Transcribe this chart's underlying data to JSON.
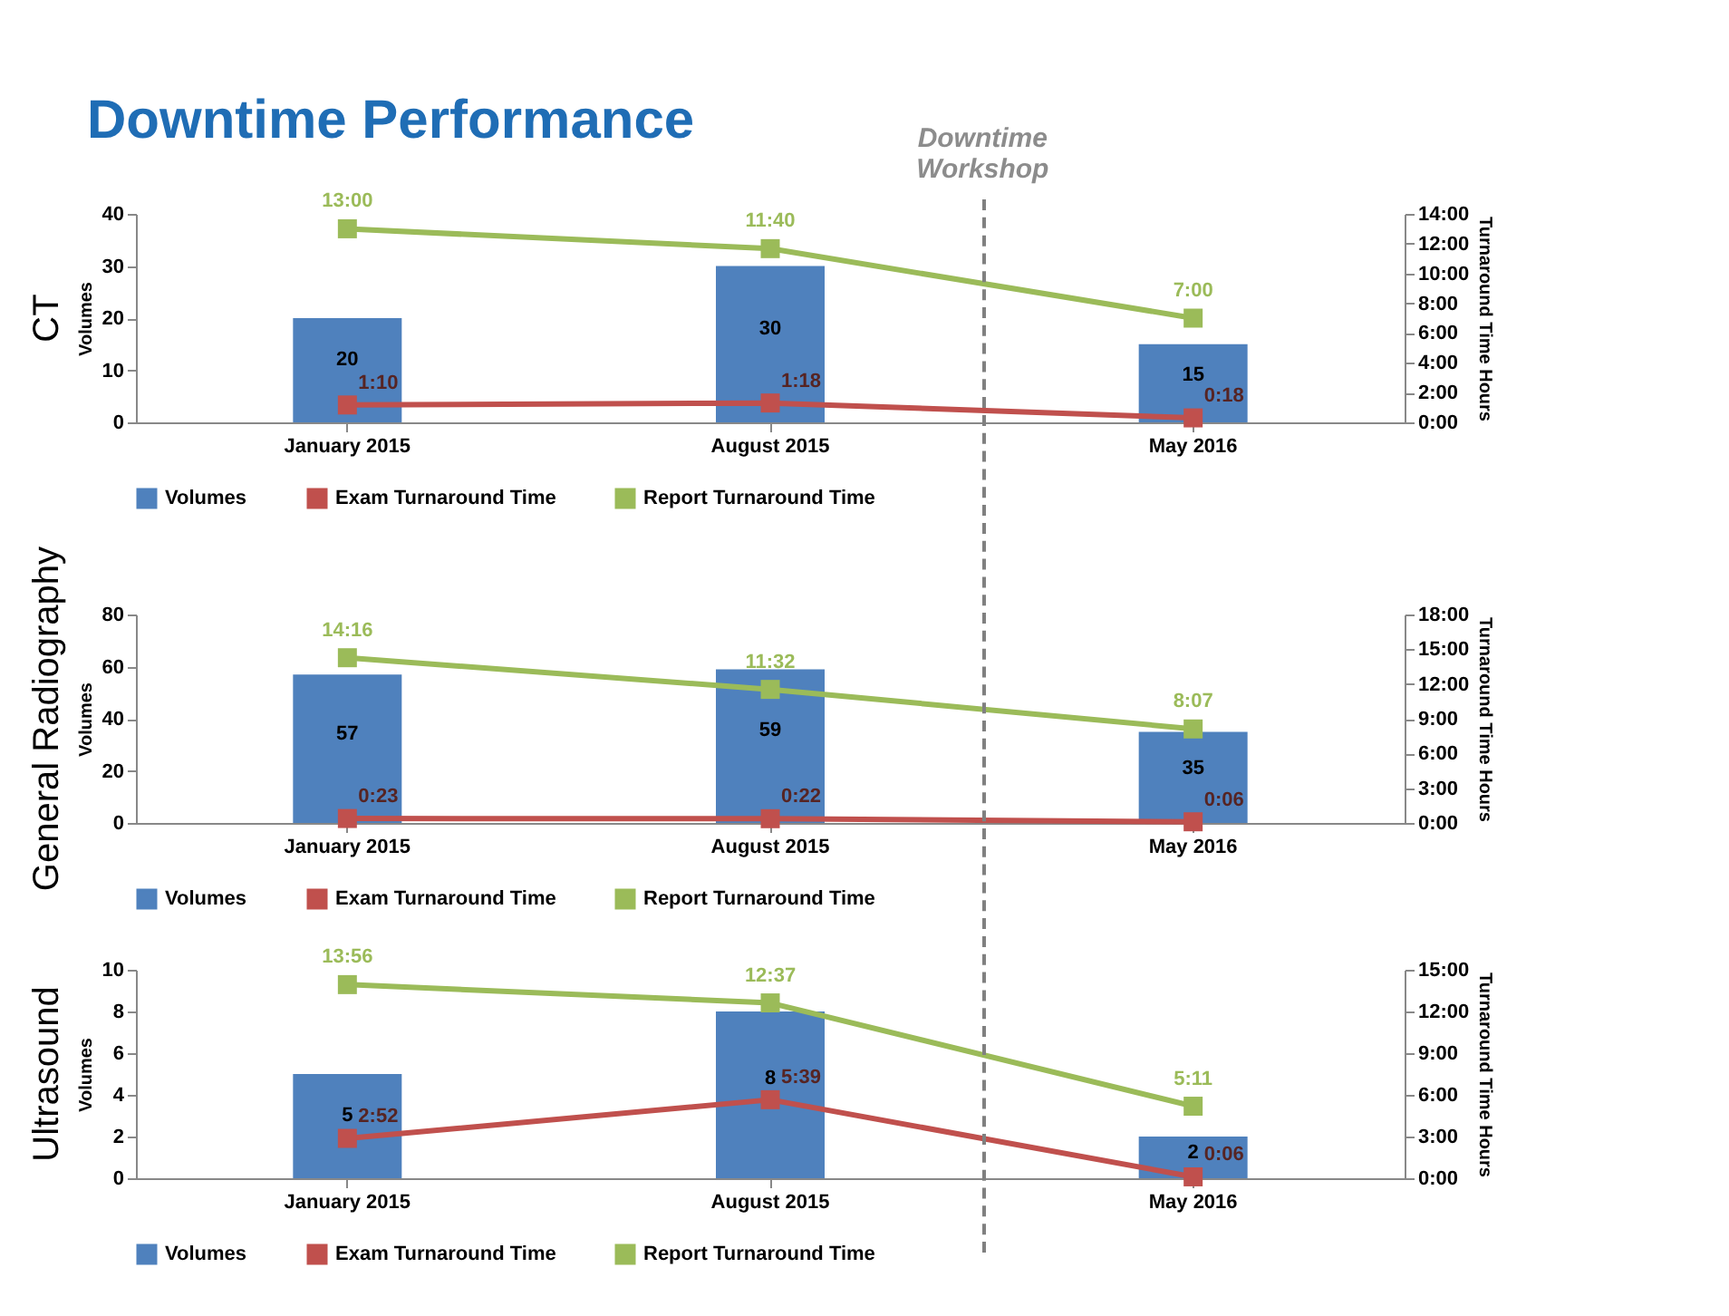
{
  "chart_data": [
    {
      "type": "bar",
      "title": "CT",
      "ylabel": "Volumes",
      "y2label": "Turnaround Time Hours",
      "annotations": [
        "Downtime Performance",
        "Downtime Workshop"
      ],
      "categories": [
        "January 2015",
        "August 2015",
        "May 2016"
      ],
      "series": [
        {
          "name": "Volumes",
          "type": "bar",
          "color": "#4f81bd",
          "values": [
            20,
            30,
            15
          ],
          "value_labels": [
            "20",
            "30",
            "15"
          ]
        },
        {
          "name": "Exam Turnaround Time",
          "type": "line",
          "axis": "y2",
          "color": "#c0504d",
          "values": [
            1.167,
            1.3,
            0.3
          ],
          "value_labels": [
            "1:10",
            "1:18",
            "0:18"
          ]
        },
        {
          "name": "Report Turnaround Time",
          "type": "line",
          "axis": "y2",
          "color": "#9bbb59",
          "values": [
            13,
            11.667,
            7
          ],
          "value_labels": [
            "13:00",
            "11:40",
            "7:00"
          ]
        }
      ],
      "ylim": [
        0,
        40
      ],
      "yticks": [
        0,
        10,
        20,
        30,
        40
      ],
      "y2lim": [
        0,
        14
      ],
      "y2ticks": [
        {
          "value": 0,
          "label": "0:00"
        },
        {
          "value": 2,
          "label": "2:00"
        },
        {
          "value": 4,
          "label": "4:00"
        },
        {
          "value": 6,
          "label": "6:00"
        },
        {
          "value": 8,
          "label": "8:00"
        },
        {
          "value": 10,
          "label": "10:00"
        },
        {
          "value": 12,
          "label": "12:00"
        },
        {
          "value": 14,
          "label": "14:00"
        }
      ],
      "legend": "bottom",
      "marker": "square",
      "line_style": "solid"
    },
    {
      "type": "bar",
      "title": "General Radiography",
      "ylabel": "Volumes",
      "y2label": "Turnaround Time Hours",
      "categories": [
        "January 2015",
        "August 2015",
        "May 2016"
      ],
      "series": [
        {
          "name": "Volumes",
          "type": "bar",
          "color": "#4f81bd",
          "values": [
            57,
            59,
            35
          ],
          "value_labels": [
            "57",
            "59",
            "35"
          ]
        },
        {
          "name": "Exam Turnaround Time",
          "type": "line",
          "axis": "y2",
          "color": "#c0504d",
          "values": [
            0.383,
            0.367,
            0.1
          ],
          "value_labels": [
            "0:23",
            "0:22",
            "0:06"
          ]
        },
        {
          "name": "Report Turnaround Time",
          "type": "line",
          "axis": "y2",
          "color": "#9bbb59",
          "values": [
            14.267,
            11.533,
            8.117
          ],
          "value_labels": [
            "14:16",
            "11:32",
            "8:07"
          ]
        }
      ],
      "ylim": [
        0,
        80
      ],
      "yticks": [
        0,
        20,
        40,
        60,
        80
      ],
      "y2lim": [
        0,
        18
      ],
      "y2ticks": [
        {
          "value": 0,
          "label": "0:00"
        },
        {
          "value": 3,
          "label": "3:00"
        },
        {
          "value": 6,
          "label": "6:00"
        },
        {
          "value": 9,
          "label": "9:00"
        },
        {
          "value": 12,
          "label": "12:00"
        },
        {
          "value": 15,
          "label": "15:00"
        },
        {
          "value": 18,
          "label": "18:00"
        }
      ],
      "legend": "bottom",
      "marker": "square",
      "line_style": "solid"
    },
    {
      "type": "bar",
      "title": "Ultrasound",
      "ylabel": "Volumes",
      "y2label": "Turnaround Time Hours",
      "categories": [
        "January 2015",
        "August 2015",
        "May 2016"
      ],
      "series": [
        {
          "name": "Volumes",
          "type": "bar",
          "color": "#4f81bd",
          "values": [
            5,
            8,
            2
          ],
          "value_labels": [
            "5",
            "8",
            "2"
          ]
        },
        {
          "name": "Exam Turnaround Time",
          "type": "line",
          "axis": "y2",
          "color": "#c0504d",
          "values": [
            2.867,
            5.65,
            0.1
          ],
          "value_labels": [
            "2:52",
            "5:39",
            "0:06"
          ]
        },
        {
          "name": "Report Turnaround Time",
          "type": "line",
          "axis": "y2",
          "color": "#9bbb59",
          "values": [
            13.933,
            12.617,
            5.183
          ],
          "value_labels": [
            "13:56",
            "12:37",
            "5:11"
          ]
        }
      ],
      "ylim": [
        0,
        10
      ],
      "yticks": [
        0,
        2,
        4,
        6,
        8,
        10
      ],
      "y2lim": [
        0,
        15
      ],
      "y2ticks": [
        {
          "value": 0,
          "label": "0:00"
        },
        {
          "value": 3,
          "label": "3:00"
        },
        {
          "value": 6,
          "label": "6:00"
        },
        {
          "value": 9,
          "label": "9:00"
        },
        {
          "value": 12,
          "label": "12:00"
        },
        {
          "value": 15,
          "label": "15:00"
        }
      ],
      "legend": "bottom",
      "marker": "square",
      "line_style": "solid"
    }
  ]
}
